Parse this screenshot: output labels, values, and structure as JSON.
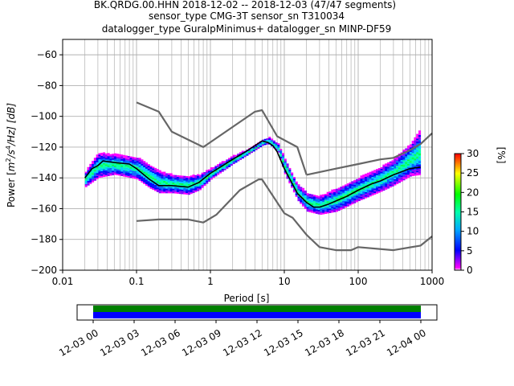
{
  "title_lines": [
    "BK.QRDG.00.HHN   2018-12-02 -- 2018-12-03  (47/47 segments)",
    "sensor_type CMG-3T sensor_sn T310034",
    "datalogger_type GuralpMinimus+ datalogger_sn MINP-DF59"
  ],
  "chart_data": [
    {
      "type": "heatmap",
      "title": "BK.QRDG.00.HHN   2018-12-02 -- 2018-12-03  (47/47 segments)",
      "xlabel": "Period [s]",
      "ylabel": "Power [m²/s⁴/Hz] [dB]",
      "ylabel_parts": {
        "pre": "Power [",
        "base1": "m",
        "sup1": "2",
        "mid": "/s",
        "sup2": "4",
        "post": "/Hz] [dB]"
      },
      "x_scale": "log",
      "xlim": [
        0.01,
        1000
      ],
      "ylim": [
        -200,
        -50
      ],
      "x_ticks": [
        {
          "value": 0.01,
          "label": "0.01"
        },
        {
          "value": 0.1,
          "label": "0.1"
        },
        {
          "value": 1,
          "label": "1"
        },
        {
          "value": 10,
          "label": "10"
        },
        {
          "value": 100,
          "label": "100"
        },
        {
          "value": 1000,
          "label": "1000"
        }
      ],
      "y_ticks": [
        {
          "value": -60,
          "label": "−60"
        },
        {
          "value": -80,
          "label": "−80"
        },
        {
          "value": -100,
          "label": "−100"
        },
        {
          "value": -120,
          "label": "−120"
        },
        {
          "value": -140,
          "label": "−140"
        },
        {
          "value": -160,
          "label": "−160"
        },
        {
          "value": -180,
          "label": "−180"
        },
        {
          "value": -200,
          "label": "−200"
        }
      ],
      "grid": true,
      "colorbar": {
        "label": "[%]",
        "range": [
          0,
          30
        ],
        "ticks": [
          {
            "value": 0,
            "label": "0"
          },
          {
            "value": 5,
            "label": "5"
          },
          {
            "value": 10,
            "label": "10"
          },
          {
            "value": 15,
            "label": "15"
          },
          {
            "value": 20,
            "label": "20"
          },
          {
            "value": 25,
            "label": "25"
          },
          {
            "value": 30,
            "label": "30"
          }
        ]
      },
      "series": [
        {
          "color": "#666666",
          "x": [
            0.1,
            0.2,
            0.3,
            0.8,
            4,
            5,
            8,
            15,
            20
          ],
          "y": [
            -91,
            -97,
            -110,
            -120,
            -97,
            -96,
            -113,
            -120,
            -138
          ]
        },
        {
          "color": "#666666",
          "x": [
            0.1,
            0.2,
            0.5,
            0.8,
            1.2,
            2.5,
            4.5,
            5,
            10,
            13,
            20,
            30,
            50,
            80,
            100,
            300,
            700,
            1000
          ],
          "y": [
            -168,
            -167,
            -167,
            -169,
            -164,
            -148,
            -141,
            -141,
            -163,
            -166,
            -177,
            -185,
            -187,
            -187,
            -185,
            -187,
            -184,
            -178
          ]
        },
        {
          "color": "#666666",
          "x": [
            20,
            50,
            100,
            200,
            300,
            500,
            700,
            1000
          ],
          "y": [
            -138,
            -134,
            -131,
            -128,
            -127,
            -122,
            -118,
            -111
          ]
        },
        {
          "color": "#000000",
          "x": [
            0.02,
            0.025,
            0.03,
            0.035,
            0.05,
            0.08,
            0.1,
            0.15,
            0.2,
            0.3,
            0.5,
            0.7,
            1,
            2,
            3,
            4,
            5,
            6,
            7,
            8,
            10,
            15,
            20,
            25,
            30,
            40,
            50,
            70,
            100,
            150,
            200,
            300,
            500,
            700
          ],
          "y": [
            -140,
            -134,
            -132,
            -129,
            -130,
            -131,
            -134,
            -141,
            -145,
            -145,
            -146,
            -143,
            -137,
            -128,
            -123,
            -119,
            -116,
            -117,
            -119,
            -123,
            -134,
            -150,
            -156,
            -159,
            -159,
            -157,
            -155,
            -152,
            -148,
            -144,
            -142,
            -138,
            -134,
            -133
          ]
        }
      ],
      "density_band": {
        "x": [
          0.02,
          0.03,
          0.05,
          0.1,
          0.15,
          0.2,
          0.3,
          0.5,
          0.7,
          1,
          2,
          4,
          5,
          6,
          8,
          10,
          15,
          20,
          30,
          50,
          100,
          200,
          300,
          500,
          700
        ],
        "upper": [
          -136,
          -124,
          -125,
          -127,
          -132,
          -136,
          -138,
          -139,
          -138,
          -134,
          -126,
          -119,
          -115,
          -114,
          -118,
          -128,
          -145,
          -150,
          -152,
          -147,
          -140,
          -133,
          -128,
          -118,
          -108
        ],
        "lower": [
          -146,
          -140,
          -138,
          -141,
          -147,
          -150,
          -150,
          -151,
          -148,
          -141,
          -131,
          -122,
          -119,
          -118,
          -123,
          -138,
          -155,
          -162,
          -164,
          -162,
          -155,
          -149,
          -145,
          -139,
          -138
        ]
      },
      "coverage": {
        "tick_labels": [
          "12-03 00",
          "12-03 03",
          "12-03 06",
          "12-03 09",
          "12-03 12",
          "12-03 15",
          "12-03 18",
          "12-03 21",
          "12-04 00"
        ],
        "bars": [
          {
            "color": "#008000",
            "fraction": 1.0
          },
          {
            "color": "#0000ff",
            "fraction": 1.0
          }
        ]
      }
    }
  ]
}
